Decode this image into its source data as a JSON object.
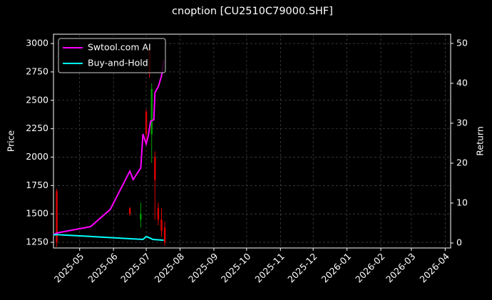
{
  "chart_data": {
    "type": "candlestick",
    "title": "cnoption [CU2510C79000.SHF]",
    "ylabel": "Price",
    "y2label": "Return",
    "xlim": [
      "2025-04-07",
      "2026-04-06"
    ],
    "xticks": [
      "2025-05",
      "2025-06",
      "2025-07",
      "2025-08",
      "2025-09",
      "2025-10",
      "2025-11",
      "2025-12",
      "2026-01",
      "2026-02",
      "2026-03",
      "2026-04"
    ],
    "ylim": [
      1200,
      3082
    ],
    "yticks": [
      1250,
      1500,
      1750,
      2000,
      2250,
      2500,
      2750,
      3000
    ],
    "y2lim": [
      -1.25,
      52.3
    ],
    "y2ticks": [
      0,
      10,
      20,
      30,
      40,
      50
    ],
    "grid": true,
    "legend": "upper left",
    "candles": {
      "x": [
        "2025-04-10",
        "2025-06-16",
        "2025-06-26",
        "2025-07-01",
        "2025-07-04",
        "2025-07-06",
        "2025-07-09",
        "2025-07-12",
        "2025-07-15",
        "2025-07-18"
      ],
      "open": [
        1700,
        1550,
        1450,
        2400,
        2950,
        2200,
        2000,
        1550,
        1450,
        1380
      ],
      "high": [
        1720,
        1560,
        1600,
        2420,
        3000,
        2650,
        2050,
        1600,
        1550,
        1430
      ],
      "low": [
        1210,
        1480,
        1380,
        2150,
        2700,
        1950,
        1450,
        1400,
        1300,
        1220
      ],
      "close": [
        1250,
        1500,
        1500,
        2200,
        2750,
        2600,
        1800,
        1450,
        1350,
        1250
      ],
      "up_color": "#00a000",
      "down_color": "#e00000"
    },
    "series": [
      {
        "name": "Swtool.com AI",
        "color": "#ff00ff",
        "axis": "y2",
        "x": [
          "2025-04-07",
          "2025-04-10",
          "2025-05-11",
          "2025-05-29",
          "2025-06-16",
          "2025-06-19",
          "2025-06-26",
          "2025-06-28",
          "2025-07-01",
          "2025-07-03",
          "2025-07-05",
          "2025-07-08",
          "2025-07-09",
          "2025-07-12",
          "2025-07-15",
          "2025-07-17"
        ],
        "values": [
          2.1,
          2.5,
          4.1,
          8.4,
          18.0,
          15.9,
          18.8,
          27.3,
          24.8,
          27.0,
          30.5,
          30.9,
          37.7,
          39.1,
          41.8,
          45.7
        ]
      },
      {
        "name": "Buy-and-Hold",
        "color": "#00ffff",
        "axis": "y2",
        "x": [
          "2025-04-07",
          "2025-04-10",
          "2025-06-28",
          "2025-07-01",
          "2025-07-04",
          "2025-07-07",
          "2025-07-17"
        ],
        "values": [
          2.0,
          2.1,
          0.9,
          1.6,
          1.3,
          0.9,
          0.7
        ]
      }
    ]
  }
}
